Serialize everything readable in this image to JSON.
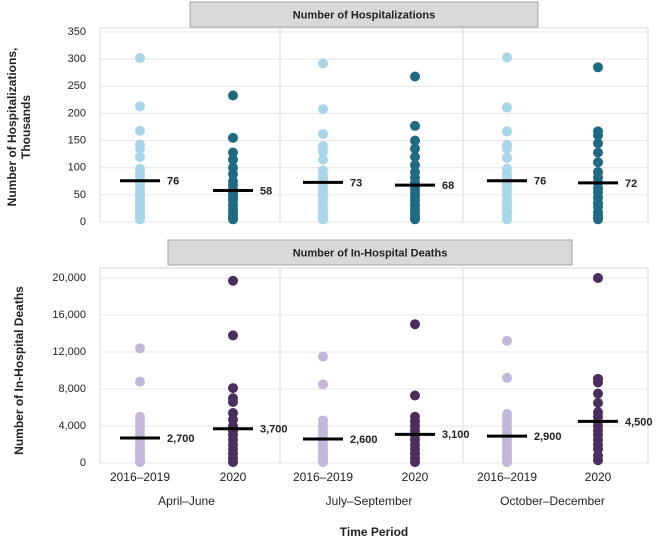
{
  "chart_data": [
    {
      "type": "strip",
      "title": "Number of Hospitalizations",
      "ylabel": [
        "Number of Hospitalizations,",
        "Thousands"
      ],
      "ylim": [
        0,
        350
      ],
      "yticks": [
        0,
        50,
        100,
        150,
        200,
        250,
        300,
        350
      ],
      "grid": true,
      "colors": [
        "#a9d5e8",
        "#1f6a82"
      ],
      "points": [
        [
          302,
          213,
          168,
          143,
          135,
          120,
          98,
          90,
          85,
          78,
          72,
          65,
          58,
          50,
          45,
          40,
          35,
          30,
          25,
          20,
          15,
          10,
          8,
          5
        ],
        [
          233,
          155,
          128,
          115,
          100,
          88,
          75,
          68,
          60,
          55,
          50,
          45,
          40,
          32,
          25,
          18,
          12,
          8,
          5
        ],
        [
          292,
          208,
          162,
          140,
          130,
          115,
          95,
          85,
          78,
          70,
          62,
          55,
          48,
          40,
          32,
          25,
          18,
          12,
          8,
          5
        ],
        [
          268,
          177,
          150,
          135,
          120,
          105,
          92,
          82,
          72,
          62,
          55,
          48,
          40,
          32,
          25,
          18,
          12,
          8,
          5
        ],
        [
          303,
          211,
          167,
          142,
          135,
          118,
          98,
          88,
          80,
          72,
          65,
          58,
          50,
          42,
          35,
          28,
          20,
          14,
          8,
          5
        ],
        [
          285,
          167,
          160,
          145,
          128,
          110,
          92,
          82,
          72,
          62,
          55,
          45,
          35,
          28,
          18,
          12,
          8,
          5
        ]
      ],
      "means": [
        76,
        58,
        73,
        68,
        76,
        72
      ]
    },
    {
      "type": "strip",
      "title": "Number of In-Hospital Deaths",
      "ylabel": [
        "Number of In-Hospital Deaths"
      ],
      "xlabel": "Time Period",
      "categories": [
        "2016–2019",
        "2020",
        "2016–2019",
        "2020",
        "2016–2019",
        "2020"
      ],
      "groups": [
        "April–June",
        "July–September",
        "October–December"
      ],
      "ylim": [
        0,
        20000
      ],
      "yticks": [
        0,
        {
          "value": 4000,
          "label": "4,000"
        },
        {
          "value": 8000,
          "label": "8,000"
        },
        {
          "value": 12000,
          "label": "12,000"
        },
        {
          "value": 16000,
          "label": "16,000"
        },
        {
          "value": 20000,
          "label": "20,000"
        }
      ],
      "grid": true,
      "colors": [
        "#c4b6da",
        "#4b2e5e"
      ],
      "points": [
        [
          12400,
          8800,
          5000,
          4500,
          4000,
          3500,
          3000,
          2600,
          2200,
          1800,
          1500,
          1200,
          900,
          600,
          300,
          100
        ],
        [
          19700,
          13800,
          8100,
          7000,
          6600,
          5400,
          4700,
          4000,
          3500,
          3000,
          2500,
          2000,
          1500,
          1000,
          500,
          100
        ],
        [
          11500,
          8500,
          4600,
          4200,
          3800,
          3300,
          2800,
          2400,
          2000,
          1600,
          1200,
          900,
          600,
          300,
          100
        ],
        [
          15000,
          7300,
          5000,
          4500,
          4000,
          3500,
          3000,
          2500,
          2000,
          1500,
          1000,
          500,
          100
        ],
        [
          13200,
          9200,
          5300,
          4800,
          4300,
          3800,
          3300,
          2800,
          2400,
          2000,
          1600,
          1200,
          800,
          400,
          100
        ],
        [
          20000,
          9100,
          8700,
          7500,
          6500,
          5500,
          5000,
          4500,
          4000,
          3500,
          3000,
          2500,
          2000,
          1500,
          800,
          300
        ]
      ],
      "means": [
        2700,
        3700,
        2600,
        3100,
        2900,
        4500
      ],
      "value_labels": [
        "2,700",
        "3,700",
        "2,600",
        "3,100",
        "2,900",
        "4,500"
      ]
    }
  ]
}
